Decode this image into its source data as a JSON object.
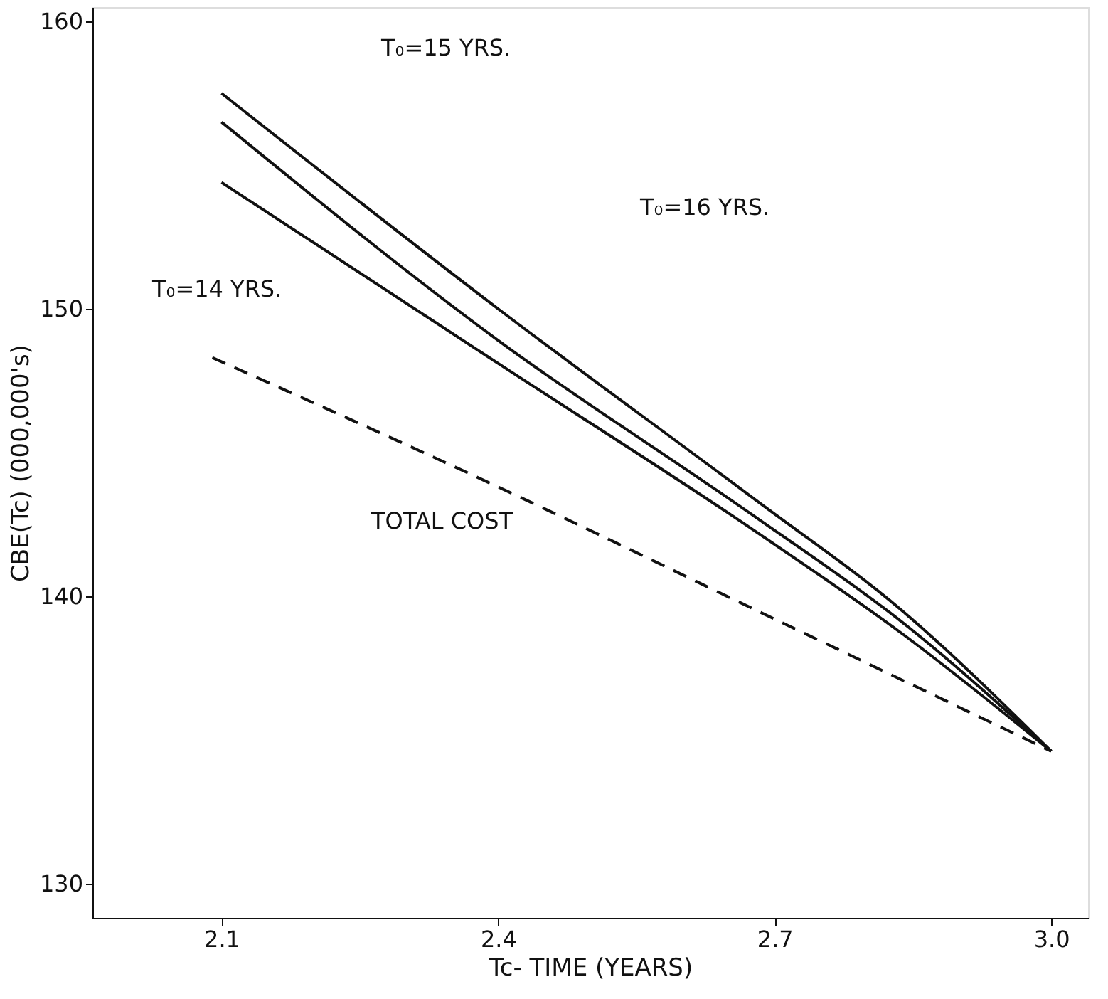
{
  "chart_data": {
    "type": "line",
    "xlabel": "Tc- TIME (YEARS)",
    "ylabel": "CBE(Tc) (000,000's)",
    "xlim": [
      1.96,
      3.04
    ],
    "ylim": [
      128.8,
      160.5
    ],
    "xticks": [
      2.1,
      2.4,
      2.7,
      {
        "value": 3.0,
        "label": "3.0"
      }
    ],
    "yticks": [
      130,
      140,
      150,
      160
    ],
    "grid": false,
    "series": [
      {
        "color": "#111111",
        "line_style": "solid",
        "x": [
          2.1,
          2.4,
          2.677,
          2.838,
          3.0
        ],
        "values": [
          154.4,
          148.1,
          142.3,
          138.7,
          134.6
        ]
      },
      {
        "color": "#111111",
        "line_style": "solid",
        "x": [
          2.1,
          2.4,
          2.677,
          2.838,
          3.0
        ],
        "values": [
          156.5,
          148.9,
          142.8,
          139.1,
          134.6
        ]
      },
      {
        "color": "#111111",
        "line_style": "solid",
        "x": [
          2.1,
          2.4,
          2.677,
          2.838,
          3.0
        ],
        "values": [
          157.5,
          150.0,
          143.4,
          139.5,
          134.6
        ]
      },
      {
        "color": "#111111",
        "line_style": "dashed",
        "x": [
          2.09,
          2.4,
          2.7,
          3.0
        ],
        "values": [
          148.3,
          143.8,
          139.2,
          134.6
        ]
      }
    ],
    "annotations": [
      "T₀=15 YRS.",
      "T₀=16 YRS.",
      "T₀=14 YRS.",
      "TOTAL COST"
    ]
  }
}
